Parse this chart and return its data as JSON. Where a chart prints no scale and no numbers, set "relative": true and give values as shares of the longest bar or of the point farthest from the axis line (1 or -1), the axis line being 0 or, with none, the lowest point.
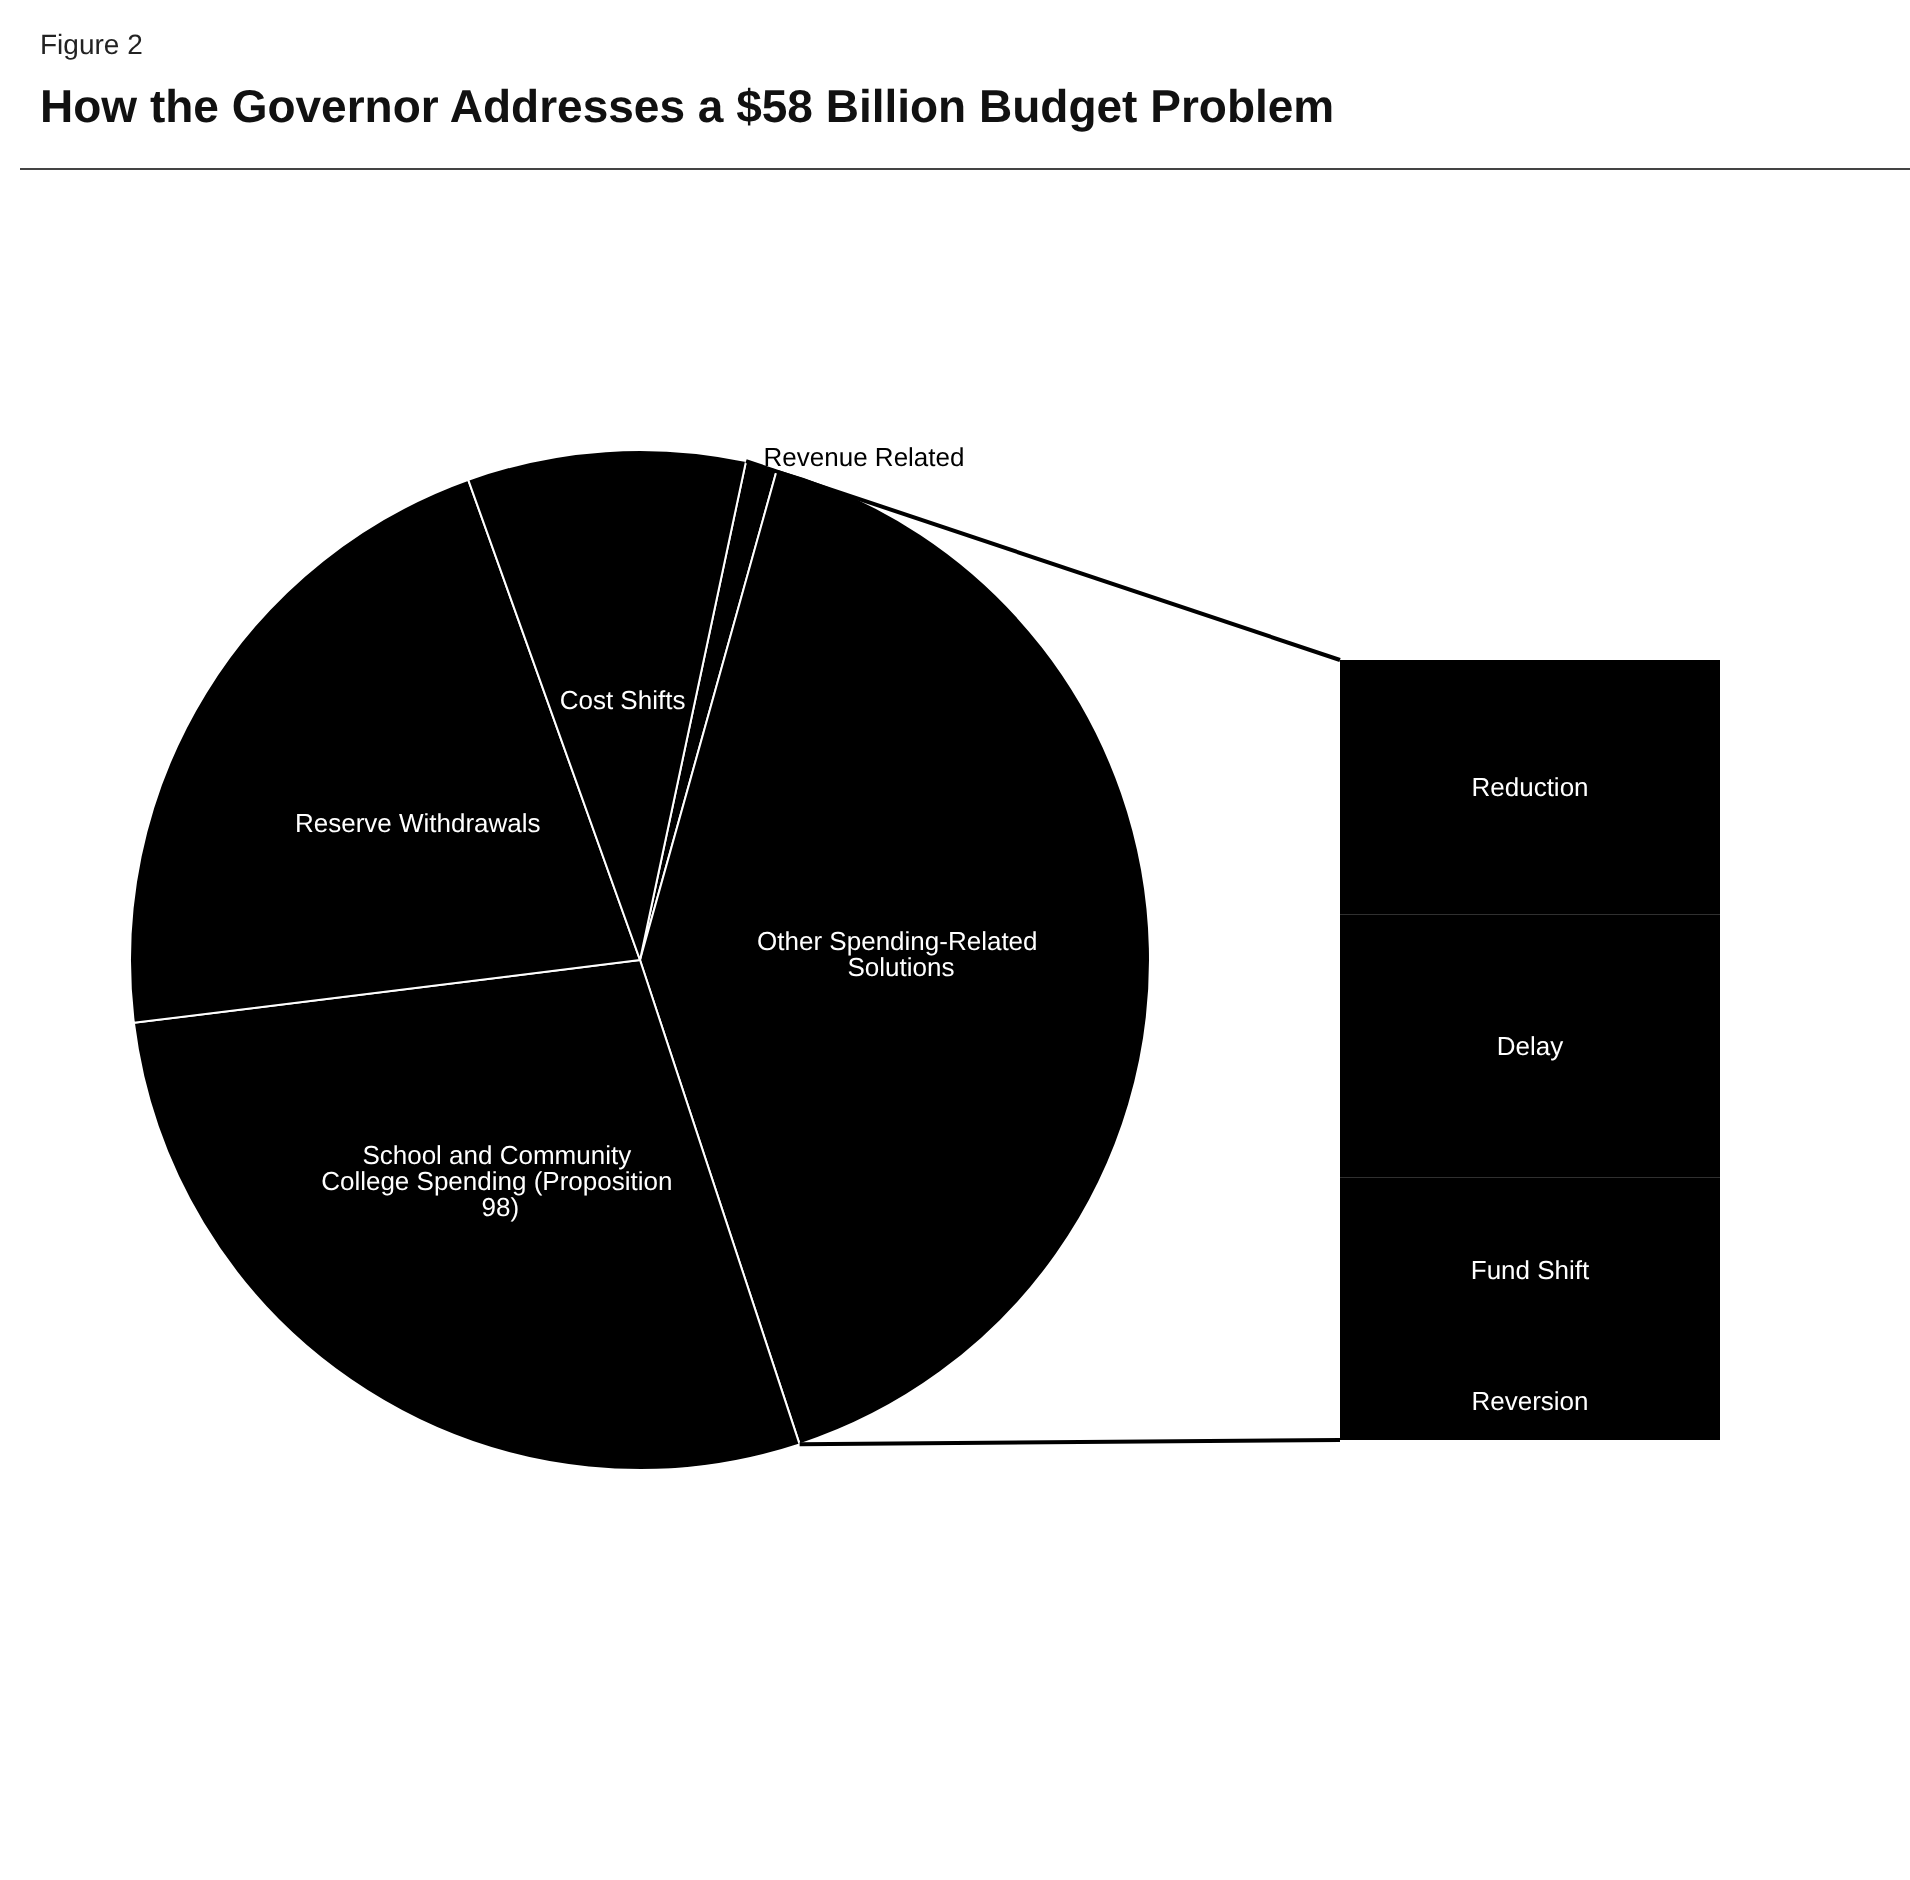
{
  "chart_data": [
    {
      "type": "pie",
      "title": "How the Governor Addresses a $58 Billion Budget Problem",
      "annotations": [
        "Figure 2"
      ],
      "categories": [
        "Revenue Related",
        "Other Spending-Related Solutions",
        "School and Community College Spending (Proposition 98)",
        "Reserve Withdrawals",
        "Cost Shifts"
      ],
      "values": [
        1.0,
        40.6,
        28.1,
        21.5,
        8.8
      ],
      "colors": [
        "#000000",
        "#000000",
        "#000000",
        "#000000",
        "#000000"
      ]
    },
    {
      "type": "bar",
      "stacked": true,
      "relative": true,
      "categories": [
        null
      ],
      "series": [
        {
          "name": "Reversion",
          "color": "#000000",
          "values": [
            0.1
          ]
        },
        {
          "name": "Fund Shift",
          "color": "#000000",
          "values": [
            0.237
          ]
        },
        {
          "name": "Delay",
          "color": "#000000",
          "values": [
            0.337
          ]
        },
        {
          "name": "Reduction",
          "color": "#000000",
          "values": [
            0.326
          ]
        }
      ]
    }
  ]
}
